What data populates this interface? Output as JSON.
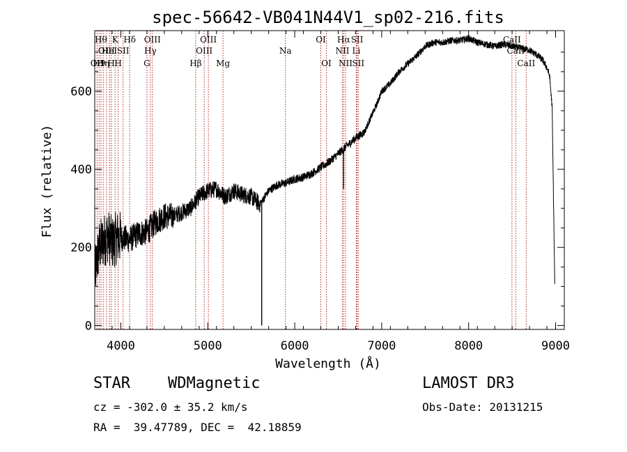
{
  "chart_data": {
    "type": "line",
    "title": "spec-56642-VB041N44V1_sp02-216.fits",
    "xlabel": "Wavelength (Å)",
    "ylabel": "Flux (relative)",
    "xlim": [
      3700,
      9100
    ],
    "ylim": [
      -10,
      755
    ],
    "xticks": [
      4000,
      5000,
      6000,
      7000,
      8000,
      9000
    ],
    "xtick_labels": [
      "4000",
      "5000",
      "6000",
      "7000",
      "8000",
      "9000"
    ],
    "yticks": [
      0,
      200,
      400,
      600
    ],
    "ytick_labels": [
      "0",
      "200",
      "400",
      "600"
    ],
    "grid": false,
    "series": [
      {
        "name": "flux",
        "x": [
          3700,
          3750,
          3800,
          3850,
          3900,
          3950,
          4000,
          4100,
          4200,
          4300,
          4400,
          4500,
          4600,
          4700,
          4800,
          4900,
          5000,
          5100,
          5200,
          5300,
          5400,
          5500,
          5600,
          5700,
          5800,
          5900,
          6000,
          6100,
          6200,
          6300,
          6400,
          6500,
          6600,
          6700,
          6800,
          6850,
          6900,
          6950,
          7000,
          7100,
          7200,
          7300,
          7400,
          7500,
          7600,
          7700,
          7800,
          7900,
          8000,
          8100,
          8200,
          8300,
          8400,
          8500,
          8600,
          8700,
          8800,
          8850,
          8900,
          8930,
          8960,
          8990
        ],
        "y": [
          130,
          200,
          215,
          230,
          210,
          225,
          225,
          220,
          235,
          240,
          265,
          280,
          280,
          290,
          300,
          330,
          345,
          350,
          330,
          345,
          335,
          330,
          310,
          345,
          360,
          365,
          375,
          380,
          390,
          405,
          420,
          440,
          460,
          480,
          495,
          520,
          545,
          570,
          600,
          620,
          650,
          670,
          690,
          715,
          725,
          725,
          730,
          730,
          735,
          725,
          720,
          715,
          720,
          715,
          710,
          705,
          690,
          680,
          660,
          640,
          560,
          110
        ]
      }
    ],
    "absorption_features": [
      {
        "x": 5620,
        "y": 0
      },
      {
        "x": 6562,
        "y": 350
      }
    ],
    "line_markers": [
      {
        "x": 3727,
        "label": "OII",
        "row": 3
      },
      {
        "x": 3750,
        "label": "H9",
        "row": 3
      },
      {
        "x": 3771,
        "label": "Hθ",
        "row": 1
      },
      {
        "x": 3798,
        "label": "Hη",
        "row": 3
      },
      {
        "x": 3835,
        "label": "OIII",
        "row": 2
      },
      {
        "x": 3869,
        "label": "HeI",
        "row": 2
      },
      {
        "x": 3889,
        "label": "H",
        "row": 3
      },
      {
        "x": 3934,
        "label": "K",
        "row": 1
      },
      {
        "x": 3969,
        "label": "H",
        "row": 3
      },
      {
        "x": 4026,
        "label": "SII",
        "row": 2
      },
      {
        "x": 4102,
        "label": "Hδ",
        "row": 1
      },
      {
        "x": 4300,
        "label": "G",
        "row": 3
      },
      {
        "x": 4340,
        "label": "Hγ",
        "row": 2
      },
      {
        "x": 4363,
        "label": "OIII",
        "row": 1
      },
      {
        "x": 4861,
        "label": "Hβ",
        "row": 3
      },
      {
        "x": 4959,
        "label": "OIII",
        "row": 2
      },
      {
        "x": 5007,
        "label": "OIII",
        "row": 1
      },
      {
        "x": 5175,
        "label": "Mg",
        "row": 3
      },
      {
        "x": 5893,
        "label": "Na",
        "row": 2
      },
      {
        "x": 6300,
        "label": "OI",
        "row": 1
      },
      {
        "x": 6364,
        "label": "OI",
        "row": 3
      },
      {
        "x": 6548,
        "label": "NII",
        "row": 2
      },
      {
        "x": 6563,
        "label": "Hα",
        "row": 1
      },
      {
        "x": 6584,
        "label": "NII",
        "row": 3
      },
      {
        "x": 6708,
        "label": "Li",
        "row": 2
      },
      {
        "x": 6717,
        "label": "SII",
        "row": 1
      },
      {
        "x": 6731,
        "label": "SII",
        "row": 3
      },
      {
        "x": 8498,
        "label": "CaII",
        "row": 1
      },
      {
        "x": 8542,
        "label": "CaII",
        "row": 2
      },
      {
        "x": 8662,
        "label": "CaII",
        "row": 3
      }
    ]
  },
  "info": {
    "object_class": "STAR",
    "subclass": "WDMagnetic",
    "survey": "LAMOST DR3",
    "cz_line": "cz = -302.0 ± 35.2 km/s",
    "obs_date_line": "Obs-Date: 20131215",
    "coords_line": "RA =  39.47789, DEC =  42.18859"
  },
  "colors": {
    "marker_line": "#b22222",
    "spectrum": "#000000",
    "axes": "#000000"
  }
}
